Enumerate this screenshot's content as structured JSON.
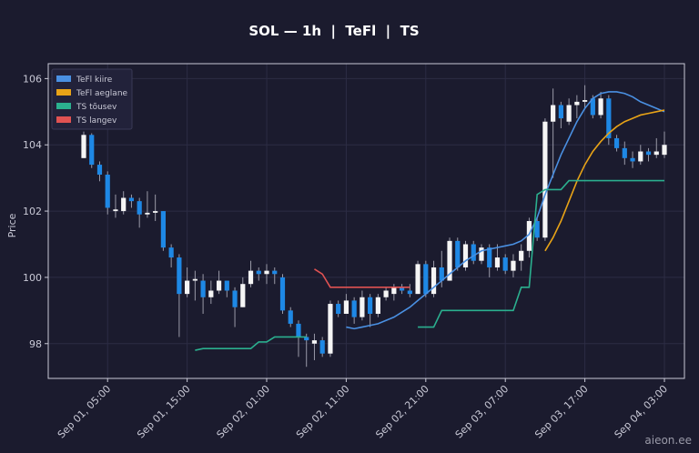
{
  "chart_data": {
    "type": "candlestick",
    "title": "SOL — 1h  |  TeFl  |  TS",
    "ylabel": "Price",
    "watermark": "aieon.ee",
    "x": [
      "Sep 01, 02:00",
      "Sep 01, 03:00",
      "Sep 01, 04:00",
      "Sep 01, 05:00",
      "Sep 01, 06:00",
      "Sep 01, 07:00",
      "Sep 01, 08:00",
      "Sep 01, 09:00",
      "Sep 01, 10:00",
      "Sep 01, 11:00",
      "Sep 01, 12:00",
      "Sep 01, 13:00",
      "Sep 01, 14:00",
      "Sep 01, 15:00",
      "Sep 01, 16:00",
      "Sep 01, 17:00",
      "Sep 01, 18:00",
      "Sep 01, 19:00",
      "Sep 01, 20:00",
      "Sep 01, 21:00",
      "Sep 01, 22:00",
      "Sep 01, 23:00",
      "Sep 02, 00:00",
      "Sep 02, 01:00",
      "Sep 02, 02:00",
      "Sep 02, 03:00",
      "Sep 02, 04:00",
      "Sep 02, 05:00",
      "Sep 02, 06:00",
      "Sep 02, 07:00",
      "Sep 02, 08:00",
      "Sep 02, 09:00",
      "Sep 02, 10:00",
      "Sep 02, 11:00",
      "Sep 02, 12:00",
      "Sep 02, 13:00",
      "Sep 02, 14:00",
      "Sep 02, 15:00",
      "Sep 02, 16:00",
      "Sep 02, 17:00",
      "Sep 02, 18:00",
      "Sep 02, 19:00",
      "Sep 02, 20:00",
      "Sep 02, 21:00",
      "Sep 02, 22:00",
      "Sep 02, 23:00",
      "Sep 03, 00:00",
      "Sep 03, 01:00",
      "Sep 03, 02:00",
      "Sep 03, 03:00",
      "Sep 03, 04:00",
      "Sep 03, 05:00",
      "Sep 03, 06:00",
      "Sep 03, 07:00",
      "Sep 03, 08:00",
      "Sep 03, 09:00",
      "Sep 03, 10:00",
      "Sep 03, 11:00",
      "Sep 03, 12:00",
      "Sep 03, 13:00",
      "Sep 03, 14:00",
      "Sep 03, 15:00",
      "Sep 03, 16:00",
      "Sep 03, 17:00",
      "Sep 03, 18:00",
      "Sep 03, 19:00",
      "Sep 03, 20:00",
      "Sep 03, 21:00",
      "Sep 03, 22:00",
      "Sep 03, 23:00",
      "Sep 04, 00:00",
      "Sep 04, 01:00",
      "Sep 04, 02:00",
      "Sep 04, 03:00"
    ],
    "open": [
      103.6,
      104.3,
      103.4,
      103.1,
      102.0,
      102.0,
      102.4,
      102.3,
      101.9,
      101.95,
      102.0,
      100.9,
      100.6,
      99.5,
      99.9,
      99.9,
      99.4,
      99.6,
      99.9,
      99.6,
      99.1,
      99.8,
      100.2,
      100.1,
      100.2,
      100.0,
      99.0,
      98.6,
      98.2,
      98.0,
      98.1,
      97.7,
      99.2,
      98.9,
      99.3,
      98.8,
      99.4,
      98.9,
      99.4,
      99.5,
      99.7,
      99.6,
      99.5,
      100.4,
      99.5,
      100.3,
      99.9,
      101.1,
      100.3,
      101.0,
      100.5,
      100.9,
      100.3,
      100.6,
      100.2,
      100.5,
      100.8,
      101.7,
      101.2,
      104.7,
      105.2,
      104.7,
      105.2,
      105.3,
      105.4,
      104.9,
      105.4,
      104.2,
      103.9,
      103.6,
      103.5,
      103.8,
      103.7,
      103.7
    ],
    "high": [
      104.4,
      104.35,
      103.5,
      103.2,
      102.5,
      102.6,
      102.5,
      102.4,
      102.6,
      102.5,
      102.0,
      101.0,
      100.7,
      100.3,
      100.2,
      100.1,
      99.9,
      100.2,
      99.9,
      99.7,
      100.0,
      100.5,
      100.3,
      100.4,
      100.3,
      100.1,
      99.1,
      98.7,
      98.3,
      98.3,
      98.2,
      99.3,
      99.3,
      99.5,
      99.4,
      99.6,
      99.5,
      99.5,
      99.7,
      99.8,
      99.8,
      99.8,
      100.5,
      100.5,
      100.5,
      100.8,
      101.2,
      101.2,
      101.1,
      101.1,
      101.0,
      101.0,
      101.0,
      100.7,
      100.7,
      101.0,
      101.8,
      101.8,
      104.8,
      105.7,
      105.3,
      105.4,
      105.5,
      105.8,
      105.5,
      105.6,
      105.5,
      104.3,
      104.1,
      103.8,
      104.0,
      103.9,
      104.2,
      104.4
    ],
    "low": [
      103.6,
      103.3,
      102.9,
      101.9,
      101.8,
      101.9,
      102.1,
      101.5,
      101.8,
      101.7,
      100.8,
      100.3,
      98.2,
      99.4,
      99.3,
      98.9,
      99.2,
      99.5,
      99.4,
      98.5,
      99.1,
      99.7,
      99.9,
      99.8,
      99.8,
      98.9,
      98.5,
      97.6,
      97.3,
      97.5,
      97.6,
      97.6,
      98.8,
      98.9,
      98.6,
      98.7,
      98.5,
      98.8,
      99.3,
      99.3,
      99.5,
      99.4,
      99.5,
      99.4,
      99.4,
      99.7,
      99.9,
      100.2,
      100.2,
      100.4,
      100.4,
      100.0,
      100.2,
      100.1,
      100.0,
      100.2,
      100.6,
      101.1,
      101.1,
      103.0,
      104.5,
      104.6,
      104.8,
      105.1,
      104.8,
      104.8,
      104.0,
      103.8,
      103.4,
      103.3,
      103.4,
      103.5,
      103.6,
      103.6
    ],
    "close": [
      104.3,
      103.4,
      103.1,
      102.1,
      102.05,
      102.4,
      102.3,
      101.9,
      101.95,
      102.0,
      100.9,
      100.6,
      99.5,
      99.9,
      99.95,
      99.4,
      99.6,
      99.9,
      99.6,
      99.1,
      99.8,
      100.2,
      100.1,
      100.2,
      100.1,
      99.0,
      98.6,
      98.2,
      98.1,
      98.1,
      97.7,
      99.2,
      98.9,
      99.3,
      98.8,
      99.4,
      98.9,
      99.4,
      99.6,
      99.7,
      99.6,
      99.5,
      100.4,
      99.5,
      100.3,
      99.9,
      101.1,
      100.3,
      101.0,
      100.5,
      100.9,
      100.3,
      100.6,
      100.2,
      100.5,
      100.8,
      101.7,
      101.2,
      104.7,
      105.2,
      104.8,
      105.2,
      105.3,
      105.35,
      104.9,
      105.4,
      104.2,
      103.9,
      103.6,
      103.5,
      103.8,
      103.7,
      103.8,
      104.0
    ],
    "up_color": "#f5f5f5",
    "down_color": "#1e88e5",
    "series": [
      {
        "name": "TeFl kiire",
        "color": "#4a90e2",
        "values": [
          null,
          null,
          null,
          null,
          null,
          null,
          null,
          null,
          null,
          null,
          null,
          null,
          null,
          null,
          null,
          null,
          null,
          null,
          null,
          null,
          null,
          null,
          null,
          null,
          null,
          null,
          null,
          null,
          null,
          null,
          null,
          null,
          null,
          98.5,
          98.45,
          98.5,
          98.55,
          98.6,
          98.7,
          98.8,
          98.95,
          99.1,
          99.3,
          99.5,
          99.7,
          99.9,
          100.1,
          100.3,
          100.5,
          100.65,
          100.8,
          100.85,
          100.9,
          100.95,
          101.0,
          101.1,
          101.3,
          101.8,
          102.5,
          103.1,
          103.7,
          104.2,
          104.7,
          105.1,
          105.4,
          105.55,
          105.6,
          105.6,
          105.55,
          105.45,
          105.3,
          105.2,
          105.1,
          105.0
        ]
      },
      {
        "name": "TeFl aeglane",
        "color": "#e8a317",
        "values": [
          null,
          null,
          null,
          null,
          null,
          null,
          null,
          null,
          null,
          null,
          null,
          null,
          null,
          null,
          null,
          null,
          null,
          null,
          null,
          null,
          null,
          null,
          null,
          null,
          null,
          null,
          null,
          null,
          null,
          null,
          null,
          null,
          null,
          null,
          null,
          null,
          null,
          null,
          null,
          null,
          null,
          null,
          null,
          null,
          null,
          null,
          null,
          null,
          null,
          null,
          null,
          null,
          null,
          null,
          null,
          null,
          null,
          null,
          100.8,
          101.2,
          101.7,
          102.3,
          102.9,
          103.4,
          103.8,
          104.1,
          104.35,
          104.55,
          104.7,
          104.8,
          104.9,
          104.95,
          105.0,
          105.05
        ]
      },
      {
        "name": "TS tõusev",
        "color": "#2bb08f",
        "values": [
          null,
          null,
          null,
          null,
          null,
          null,
          null,
          null,
          null,
          null,
          null,
          null,
          null,
          null,
          97.8,
          97.85,
          97.85,
          97.85,
          97.85,
          97.85,
          97.85,
          97.85,
          98.05,
          98.05,
          98.2,
          98.2,
          98.2,
          98.2,
          98.2,
          null,
          null,
          null,
          null,
          null,
          null,
          null,
          null,
          null,
          null,
          null,
          null,
          null,
          98.5,
          98.5,
          98.5,
          99.0,
          99.0,
          99.0,
          99.0,
          99.0,
          99.0,
          99.0,
          99.0,
          99.0,
          99.0,
          99.7,
          99.7,
          102.5,
          102.65,
          102.65,
          102.65,
          102.92,
          102.92,
          102.92,
          102.92,
          102.92,
          102.92,
          102.92,
          102.92,
          102.92,
          102.92,
          102.92,
          102.92,
          102.92
        ]
      },
      {
        "name": "TS langev",
        "color": "#e05252",
        "values": [
          null,
          null,
          null,
          null,
          null,
          null,
          null,
          null,
          null,
          null,
          null,
          null,
          null,
          null,
          null,
          null,
          null,
          null,
          null,
          null,
          null,
          null,
          null,
          null,
          null,
          null,
          null,
          null,
          null,
          100.25,
          100.1,
          99.7,
          99.7,
          99.7,
          99.7,
          99.7,
          99.7,
          99.7,
          99.7,
          99.7,
          99.7,
          99.7,
          null,
          null,
          null,
          null,
          null,
          null,
          null,
          null,
          null,
          null,
          null,
          null,
          null,
          null,
          null,
          null,
          null,
          null,
          null,
          null,
          null,
          null,
          null,
          null,
          null,
          null,
          null,
          null,
          null,
          null,
          null,
          null
        ]
      }
    ],
    "ylim": [
      96.95,
      106.45
    ],
    "yticks": [
      98,
      100,
      102,
      104,
      106
    ],
    "xticks": [
      "Sep 01, 05:00",
      "Sep 01, 15:00",
      "Sep 02, 01:00",
      "Sep 02, 11:00",
      "Sep 02, 21:00",
      "Sep 03, 07:00",
      "Sep 03, 17:00",
      "Sep 04, 03:00"
    ],
    "grid": true,
    "legend": "upper left"
  }
}
